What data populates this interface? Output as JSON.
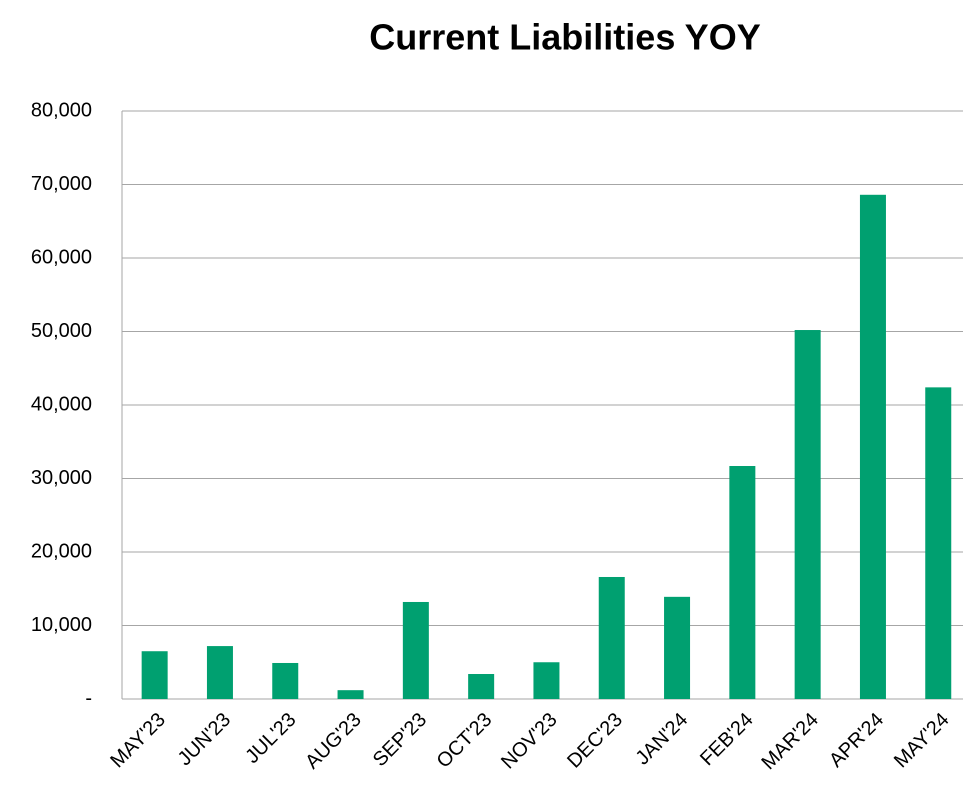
{
  "chart_data": {
    "type": "bar",
    "title": "Current Liabilities YOY",
    "categories": [
      "MAY'23",
      "JUN'23",
      "JUL'23",
      "AUG'23",
      "SEP'23",
      "OCT'23",
      "NOV'23",
      "DEC'23",
      "JAN'24",
      "FEB'24",
      "MAR'24",
      "APR'24",
      "MAY'24"
    ],
    "values": [
      6500,
      7200,
      4900,
      1200,
      13200,
      3400,
      5000,
      16600,
      13900,
      31700,
      50200,
      68600,
      42400
    ],
    "color": "#00a070",
    "ylim": [
      0,
      80000
    ],
    "yticks": [
      {
        "value": 0,
        "label": "-"
      },
      {
        "value": 10000,
        "label": "10,000"
      },
      {
        "value": 20000,
        "label": "20,000"
      },
      {
        "value": 30000,
        "label": "30,000"
      },
      {
        "value": 40000,
        "label": "40,000"
      },
      {
        "value": 50000,
        "label": "50,000"
      },
      {
        "value": 60000,
        "label": "60,000"
      },
      {
        "value": 70000,
        "label": "70,000"
      },
      {
        "value": 80000,
        "label": "80,000"
      }
    ],
    "grid": true
  }
}
